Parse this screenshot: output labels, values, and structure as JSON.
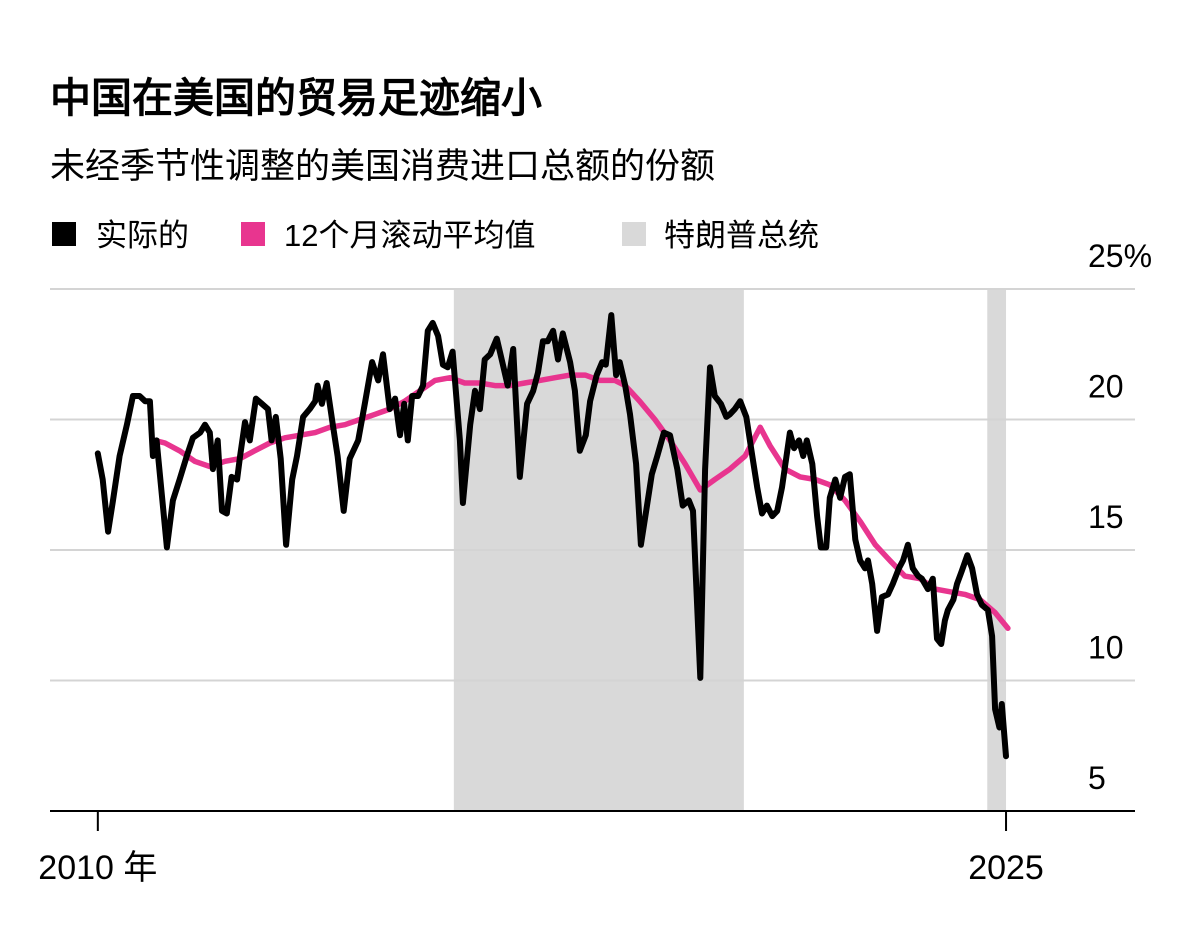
{
  "chart_data": {
    "type": "line",
    "title": "中国在美国的贸易足迹缩小",
    "subtitle": "未经季节性调整的美国消费进口总额的份额",
    "series": [
      {
        "name": "实际的",
        "color": "#000000",
        "x": [
          2010.0,
          2010.08,
          2010.17,
          2010.25,
          2010.36,
          2010.48,
          2010.58,
          2010.69,
          2010.78,
          2010.86,
          2010.91,
          2010.97,
          2011.14,
          2011.24,
          2011.35,
          2011.47,
          2011.57,
          2011.69,
          2011.77,
          2011.85,
          2011.9,
          2011.98,
          2012.05,
          2012.13,
          2012.21,
          2012.3,
          2012.35,
          2012.43,
          2012.51,
          2012.61,
          2012.71,
          2012.81,
          2012.87,
          2012.94,
          2013.02,
          2013.11,
          2013.21,
          2013.29,
          2013.39,
          2013.5,
          2013.59,
          2013.63,
          2013.7,
          2013.78,
          2013.88,
          2013.96,
          2014.06,
          2014.16,
          2014.3,
          2014.41,
          2014.53,
          2014.63,
          2014.71,
          2014.82,
          2014.91,
          2014.99,
          2015.06,
          2015.12,
          2015.19,
          2015.29,
          2015.37,
          2015.45,
          2015.53,
          2015.62,
          2015.7,
          2015.78,
          2015.86,
          2015.98,
          2016.03,
          2016.15,
          2016.23,
          2016.31,
          2016.39,
          2016.48,
          2016.59,
          2016.69,
          2016.77,
          2016.86,
          2016.97,
          2017.09,
          2017.19,
          2017.27,
          2017.35,
          2017.43,
          2017.52,
          2017.6,
          2017.68,
          2017.8,
          2017.88,
          2017.96,
          2018.06,
          2018.13,
          2018.24,
          2018.33,
          2018.39,
          2018.48,
          2018.56,
          2018.62,
          2018.71,
          2018.79,
          2018.89,
          2018.97,
          2019.07,
          2019.15,
          2019.24,
          2019.35,
          2019.45,
          2019.57,
          2019.66,
          2019.76,
          2019.83,
          2019.95,
          2020.03,
          2020.11,
          2020.19,
          2020.29,
          2020.38,
          2020.44,
          2020.52,
          2020.61,
          2020.71,
          2020.81,
          2020.89,
          2020.97,
          2021.05,
          2021.14,
          2021.22,
          2021.3,
          2021.43,
          2021.5,
          2021.58,
          2021.65,
          2021.71,
          2021.8,
          2021.88,
          2021.94,
          2022.03,
          2022.09,
          2022.18,
          2022.26,
          2022.34,
          2022.42,
          2022.51,
          2022.59,
          2022.67,
          2022.72,
          2022.79,
          2022.87,
          2022.95,
          2023.05,
          2023.13,
          2023.23,
          2023.3,
          2023.38,
          2023.46,
          2023.55,
          2023.61,
          2023.71,
          2023.79,
          2023.86,
          2023.93,
          2023.99,
          2024.04,
          2024.13,
          2024.19,
          2024.27,
          2024.36,
          2024.44,
          2024.52,
          2024.6,
          2024.7,
          2024.77,
          2024.82,
          2024.89,
          2024.93,
          2025.0
        ],
        "values": [
          18.7,
          17.7,
          15.7,
          16.9,
          18.6,
          19.8,
          20.9,
          20.9,
          20.7,
          20.7,
          18.6,
          19.2,
          15.1,
          16.9,
          17.7,
          18.6,
          19.3,
          19.5,
          19.8,
          19.5,
          18.1,
          19.2,
          16.5,
          16.4,
          17.8,
          17.7,
          18.6,
          19.9,
          19.2,
          20.8,
          20.6,
          20.4,
          19.2,
          20.1,
          18.5,
          15.2,
          17.7,
          18.6,
          20.1,
          20.4,
          20.7,
          21.3,
          20.6,
          21.4,
          19.8,
          18.6,
          16.5,
          18.5,
          19.2,
          20.6,
          22.2,
          21.5,
          22.5,
          20.4,
          20.8,
          19.4,
          20.6,
          19.2,
          20.9,
          20.9,
          21.3,
          23.4,
          23.7,
          23.2,
          22.1,
          22.0,
          22.6,
          19.2,
          16.8,
          19.8,
          21.1,
          20.4,
          22.3,
          22.5,
          23.1,
          22.1,
          21.3,
          22.7,
          17.8,
          20.6,
          21.1,
          21.8,
          23.0,
          23.0,
          23.4,
          22.3,
          23.3,
          22.2,
          21.1,
          18.8,
          19.4,
          20.7,
          21.7,
          22.2,
          22.1,
          24.0,
          21.7,
          22.2,
          21.3,
          20.2,
          18.3,
          15.2,
          16.7,
          17.9,
          18.6,
          19.5,
          19.4,
          18.1,
          16.7,
          16.9,
          16.5,
          10.1,
          18.1,
          22.0,
          20.9,
          20.6,
          20.1,
          20.2,
          20.4,
          20.7,
          20.1,
          18.6,
          17.4,
          16.4,
          16.7,
          16.3,
          16.5,
          17.4,
          19.5,
          18.9,
          19.2,
          18.6,
          19.2,
          18.3,
          16.3,
          15.1,
          15.1,
          17.0,
          17.7,
          17.0,
          17.8,
          17.9,
          15.4,
          14.6,
          14.3,
          14.6,
          13.7,
          11.9,
          13.2,
          13.3,
          13.7,
          14.3,
          14.6,
          15.2,
          14.3,
          14.0,
          13.9,
          13.5,
          13.9,
          11.6,
          11.4,
          12.3,
          12.7,
          13.1,
          13.7,
          14.2,
          14.8,
          14.3,
          13.3,
          12.9,
          12.7,
          11.7,
          8.9,
          8.2,
          9.1,
          7.1
        ]
      },
      {
        "name": "12个月滚动平均值",
        "color": "#e8358f",
        "x": [
          2010.94,
          2011.11,
          2011.35,
          2011.6,
          2011.85,
          2012.1,
          2012.35,
          2012.59,
          2012.84,
          2013.09,
          2013.34,
          2013.59,
          2013.83,
          2014.08,
          2014.33,
          2014.58,
          2014.82,
          2015.07,
          2015.32,
          2015.57,
          2015.82,
          2016.06,
          2016.31,
          2016.56,
          2016.81,
          2017.05,
          2017.3,
          2017.55,
          2017.8,
          2018.05,
          2018.29,
          2018.54,
          2018.71,
          2018.95,
          2019.2,
          2019.45,
          2019.7,
          2019.95,
          2020.19,
          2020.44,
          2020.69,
          2020.94,
          2021.1,
          2021.35,
          2021.6,
          2021.85,
          2022.09,
          2022.34,
          2022.59,
          2022.84,
          2023.08,
          2023.33,
          2023.58,
          2023.83,
          2024.08,
          2024.32,
          2024.57,
          2024.82,
          2025.03
        ],
        "values": [
          19.2,
          19.1,
          18.8,
          18.4,
          18.2,
          18.4,
          18.5,
          18.8,
          19.1,
          19.3,
          19.4,
          19.5,
          19.7,
          19.8,
          20.0,
          20.2,
          20.4,
          20.7,
          21.1,
          21.5,
          21.6,
          21.4,
          21.4,
          21.3,
          21.3,
          21.4,
          21.5,
          21.6,
          21.7,
          21.7,
          21.5,
          21.5,
          21.3,
          20.7,
          20.0,
          19.2,
          18.3,
          17.3,
          17.7,
          18.1,
          18.6,
          19.7,
          19.0,
          18.1,
          17.8,
          17.7,
          17.5,
          16.9,
          16.1,
          15.2,
          14.6,
          14.0,
          13.9,
          13.5,
          13.4,
          13.3,
          13.1,
          12.6,
          12.0
        ]
      }
    ],
    "shading": {
      "name": "特朗普总统",
      "color": "#d9d9d9",
      "periods": [
        {
          "start": 2015.88,
          "end": 2020.67
        },
        {
          "start": 2024.69,
          "end": 2025.0
        }
      ]
    },
    "xlim": [
      2009.21,
      2027.13
    ],
    "xticks": [
      {
        "value": 2010,
        "label": "2010 年"
      },
      2025
    ],
    "ylim": [
      5,
      25
    ],
    "yticks": [
      5,
      10,
      15,
      20,
      {
        "value": 25,
        "label": "25%"
      }
    ],
    "grid": true
  }
}
